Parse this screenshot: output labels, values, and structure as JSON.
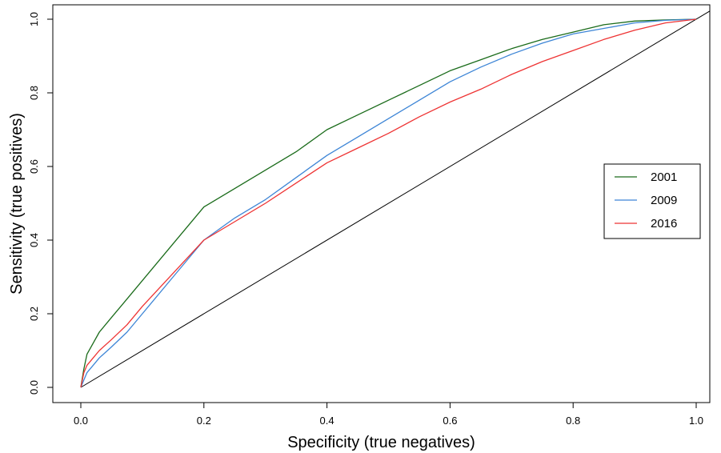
{
  "chart_data": {
    "type": "line",
    "title": "",
    "xlabel": "Specificity (true negatives)",
    "ylabel": "Sensitivity (true positives)",
    "xlim": [
      0,
      1
    ],
    "ylim": [
      0,
      1
    ],
    "x_ticks": [
      0.0,
      0.2,
      0.4,
      0.6,
      0.8,
      1.0
    ],
    "x_tick_labels": [
      "0.0",
      "0.2",
      "0.4",
      "0.6",
      "0.8",
      "1.0"
    ],
    "y_ticks": [
      0.0,
      0.2,
      0.4,
      0.6,
      0.8,
      1.0
    ],
    "y_tick_labels": [
      "0.0",
      "0.2",
      "0.4",
      "0.6",
      "0.8",
      "1.0"
    ],
    "grid": false,
    "legend_position": "right",
    "reference_line": {
      "x": [
        0,
        1
      ],
      "y": [
        0,
        1
      ],
      "color": "#000000"
    },
    "series": [
      {
        "name": "2001",
        "color": "#1a6b1a",
        "x": [
          0,
          0.005,
          0.01,
          0.02,
          0.03,
          0.05,
          0.075,
          0.1,
          0.15,
          0.2,
          0.25,
          0.3,
          0.35,
          0.4,
          0.45,
          0.5,
          0.55,
          0.6,
          0.65,
          0.7,
          0.75,
          0.8,
          0.85,
          0.9,
          0.95,
          1.0
        ],
        "y": [
          0,
          0.05,
          0.09,
          0.12,
          0.15,
          0.19,
          0.24,
          0.29,
          0.39,
          0.49,
          0.54,
          0.59,
          0.64,
          0.7,
          0.74,
          0.78,
          0.82,
          0.86,
          0.89,
          0.92,
          0.945,
          0.965,
          0.985,
          0.995,
          0.998,
          1.0
        ]
      },
      {
        "name": "2009",
        "color": "#3d85d6",
        "x": [
          0,
          0.005,
          0.01,
          0.02,
          0.03,
          0.05,
          0.075,
          0.1,
          0.15,
          0.2,
          0.25,
          0.3,
          0.35,
          0.4,
          0.45,
          0.5,
          0.55,
          0.6,
          0.65,
          0.7,
          0.75,
          0.8,
          0.85,
          0.9,
          0.95,
          1.0
        ],
        "y": [
          0,
          0.02,
          0.04,
          0.06,
          0.08,
          0.11,
          0.15,
          0.2,
          0.3,
          0.4,
          0.46,
          0.51,
          0.57,
          0.63,
          0.68,
          0.73,
          0.78,
          0.83,
          0.87,
          0.905,
          0.935,
          0.96,
          0.975,
          0.99,
          0.997,
          1.0
        ]
      },
      {
        "name": "2016",
        "color": "#ee3333",
        "x": [
          0,
          0.005,
          0.01,
          0.02,
          0.03,
          0.05,
          0.075,
          0.1,
          0.15,
          0.2,
          0.25,
          0.3,
          0.35,
          0.4,
          0.45,
          0.5,
          0.55,
          0.6,
          0.65,
          0.7,
          0.75,
          0.8,
          0.85,
          0.9,
          0.95,
          1.0
        ],
        "y": [
          0,
          0.04,
          0.06,
          0.08,
          0.1,
          0.13,
          0.17,
          0.22,
          0.31,
          0.4,
          0.45,
          0.5,
          0.555,
          0.61,
          0.65,
          0.69,
          0.735,
          0.775,
          0.81,
          0.85,
          0.885,
          0.915,
          0.945,
          0.97,
          0.99,
          1.0
        ]
      }
    ]
  }
}
